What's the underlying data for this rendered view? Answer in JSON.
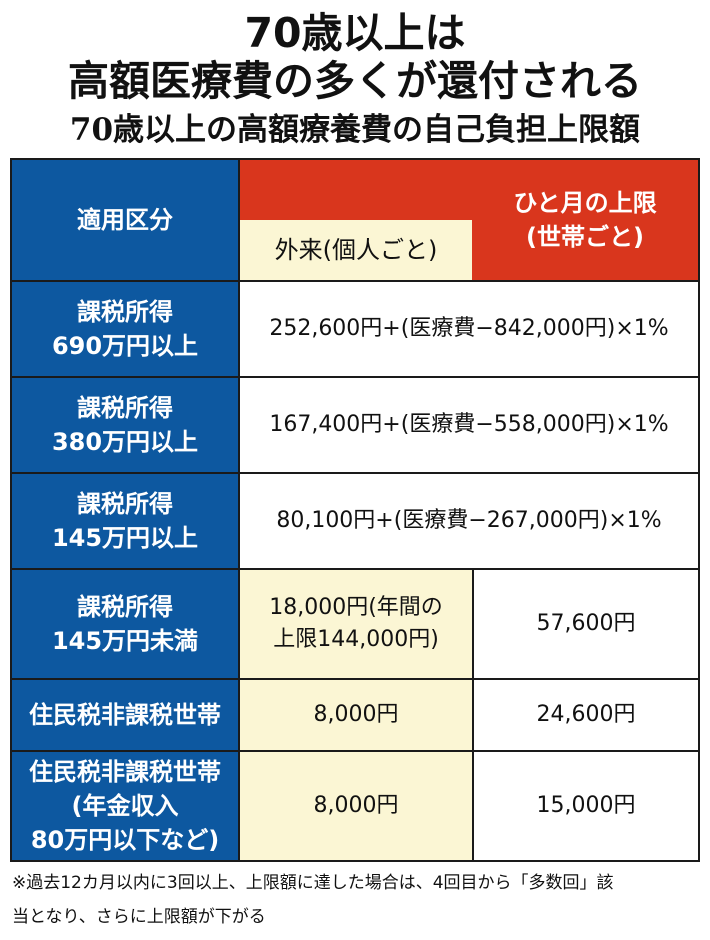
{
  "title": {
    "line1": "70歳以上は",
    "line2": "高額医療費の多くが還付される",
    "subtitle": "70歳以上の高額療養費の自己負担上限額"
  },
  "table": {
    "header": {
      "category": "適用区分",
      "outpatient": "外来(個人ごと)",
      "monthly_limit_line1": "ひと月の上限",
      "monthly_limit_line2": "(世帯ごと)"
    },
    "rows": [
      {
        "label_line1": "課税所得",
        "label_line2": "690万円以上",
        "merged": "252,600円+(医療費−842,000円)×1%"
      },
      {
        "label_line1": "課税所得",
        "label_line2": "380万円以上",
        "merged": "167,400円+(医療費−558,000円)×1%"
      },
      {
        "label_line1": "課税所得",
        "label_line2": "145万円以上",
        "merged": "80,100円+(医療費−267,000円)×1%"
      },
      {
        "label_line1": "課税所得",
        "label_line2": "145万円未満",
        "outpatient_line1": "18,000円(年間の",
        "outpatient_line2": "上限144,000円)",
        "monthly": "57,600円"
      },
      {
        "label_line1": "住民税非課税世帯",
        "outpatient": "8,000円",
        "monthly": "24,600円"
      },
      {
        "label_line1": "住民税非課税世帯",
        "label_line2": "(年金収入",
        "label_line3": "80万円以下など)",
        "outpatient": "8,000円",
        "monthly": "15,000円"
      }
    ]
  },
  "footnote": {
    "line1": "※過去12カ月以内に3回以上、上限額に達した場合は、4回目から「多数回」該",
    "line2": "当となり、さらに上限額が下がる"
  },
  "colors": {
    "header_blue": "#0d58a0",
    "header_red": "#d9361d",
    "cream": "#fbf6d4",
    "border": "#1a1a1a"
  }
}
